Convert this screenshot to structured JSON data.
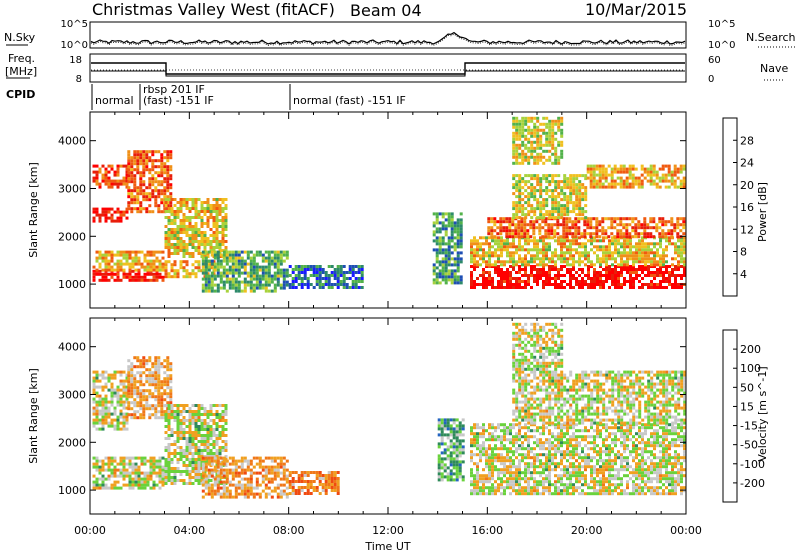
{
  "header": {
    "radar_title": "Christmas Valley West (fitACF)",
    "beam_label": "Beam 04",
    "date": "10/Mar/2015"
  },
  "top_panels": {
    "nsky_label": "N.Sky",
    "nsky_ticks": [
      "10^5",
      "10^0"
    ],
    "nsearch_label": "N.Search",
    "nsearch_ticks": [
      "10^5",
      "10^0"
    ],
    "freq_label_line1": "Freq.",
    "freq_label_line2": "[MHz]",
    "freq_ticks": [
      "18",
      "8"
    ],
    "nave_label": "Nave",
    "nave_ticks": [
      "60",
      "0"
    ],
    "cpid_label": "CPID",
    "cpid_segments": [
      {
        "label": "normal"
      },
      {
        "label": "rbsp 201 IF",
        "label2": "(fast) -151 IF"
      },
      {
        "label": "normal (fast) -151 IF"
      }
    ]
  },
  "chart_data": [
    {
      "type": "heatmap",
      "name": "power",
      "ylabel": "Slant Range [km]",
      "xlabel": "",
      "yticks": [
        "1000",
        "2000",
        "3000",
        "4000"
      ],
      "ylim": [
        500,
        4600
      ],
      "xlim": [
        0,
        24
      ],
      "colorbar": {
        "label": "Power [dB]",
        "ticks": [
          "4",
          "8",
          "12",
          "16",
          "20",
          "24",
          "28"
        ],
        "colors": [
          "#1a1aff",
          "#1e4fb4",
          "#2d8a6a",
          "#52b24a",
          "#a8d23c",
          "#f0c020",
          "#f09018",
          "#f05a10",
          "#e81e0a",
          "#ff0000"
        ]
      },
      "regions": [
        {
          "t0": 0.1,
          "t1": 2.9,
          "r0": 1050,
          "r1": 1300,
          "level": 0.9
        },
        {
          "t0": 0.1,
          "t1": 2.9,
          "r0": 1300,
          "r1": 1700,
          "level": 0.6
        },
        {
          "t0": 0.1,
          "t1": 1.5,
          "r0": 2300,
          "r1": 2600,
          "level": 0.9
        },
        {
          "t0": 0.1,
          "t1": 1.5,
          "r0": 3000,
          "r1": 3500,
          "level": 0.8
        },
        {
          "t0": 1.5,
          "t1": 3.3,
          "r0": 2500,
          "r1": 3800,
          "level": 0.75
        },
        {
          "t0": 3.0,
          "t1": 5.0,
          "r0": 1150,
          "r1": 1500,
          "level": 0.6
        },
        {
          "t0": 3.0,
          "t1": 5.5,
          "r0": 1600,
          "r1": 2800,
          "level": 0.55
        },
        {
          "t0": 4.5,
          "t1": 8.0,
          "r0": 850,
          "r1": 1700,
          "level": 0.35
        },
        {
          "t0": 8.0,
          "t1": 11.0,
          "r0": 900,
          "r1": 1400,
          "level": 0.2
        },
        {
          "t0": 13.8,
          "t1": 15.0,
          "r0": 1000,
          "r1": 2500,
          "level": 0.3
        },
        {
          "t0": 15.3,
          "t1": 24.0,
          "r0": 900,
          "r1": 1400,
          "level": 0.95
        },
        {
          "t0": 15.3,
          "t1": 24.0,
          "r0": 1400,
          "r1": 2000,
          "level": 0.55
        },
        {
          "t0": 16.0,
          "t1": 24.0,
          "r0": 2000,
          "r1": 2400,
          "level": 0.75
        },
        {
          "t0": 17.0,
          "t1": 20.0,
          "r0": 2400,
          "r1": 3300,
          "level": 0.5
        },
        {
          "t0": 20.0,
          "t1": 24.0,
          "r0": 3000,
          "r1": 3500,
          "level": 0.6
        },
        {
          "t0": 17.0,
          "t1": 19.0,
          "r0": 3500,
          "r1": 4500,
          "level": 0.5
        }
      ]
    },
    {
      "type": "heatmap",
      "name": "velocity",
      "ylabel": "Slant Range [km]",
      "xlabel": "Time UT",
      "yticks": [
        "1000",
        "2000",
        "3000",
        "4000"
      ],
      "ylim": [
        500,
        4600
      ],
      "xlim": [
        0,
        24
      ],
      "xticks": [
        "00:00",
        "04:00",
        "08:00",
        "12:00",
        "16:00",
        "20:00",
        "00:00"
      ],
      "colorbar": {
        "label": "Velocity [m s^-1]",
        "ticks": [
          "200",
          "100",
          "50",
          "15",
          "-15",
          "-50",
          "-100",
          "-200"
        ],
        "colors": [
          "#1a3cff",
          "#2464c0",
          "#2e8a5a",
          "#6ad23c",
          "#c8c8c8",
          "#f0a020",
          "#f07818",
          "#f04a10",
          "#ff0000"
        ]
      },
      "regions": [
        {
          "t0": 0.1,
          "t1": 2.9,
          "r0": 1050,
          "r1": 1700,
          "level": 0.5
        },
        {
          "t0": 0.1,
          "t1": 1.5,
          "r0": 2300,
          "r1": 3500,
          "level": 0.5
        },
        {
          "t0": 1.5,
          "t1": 3.3,
          "r0": 2500,
          "r1": 3800,
          "level": 0.62
        },
        {
          "t0": 3.0,
          "t1": 5.5,
          "r0": 1150,
          "r1": 2800,
          "level": 0.5
        },
        {
          "t0": 4.5,
          "t1": 8.0,
          "r0": 850,
          "r1": 1700,
          "level": 0.65
        },
        {
          "t0": 8.0,
          "t1": 10.0,
          "r0": 900,
          "r1": 1400,
          "level": 0.7
        },
        {
          "t0": 14.0,
          "t1": 15.0,
          "r0": 1200,
          "r1": 2500,
          "level": 0.35
        },
        {
          "t0": 15.3,
          "t1": 24.0,
          "r0": 900,
          "r1": 2400,
          "level": 0.5
        },
        {
          "t0": 17.0,
          "t1": 24.0,
          "r0": 2400,
          "r1": 3500,
          "level": 0.5
        },
        {
          "t0": 17.0,
          "t1": 19.0,
          "r0": 3500,
          "r1": 4500,
          "level": 0.5
        }
      ]
    }
  ]
}
